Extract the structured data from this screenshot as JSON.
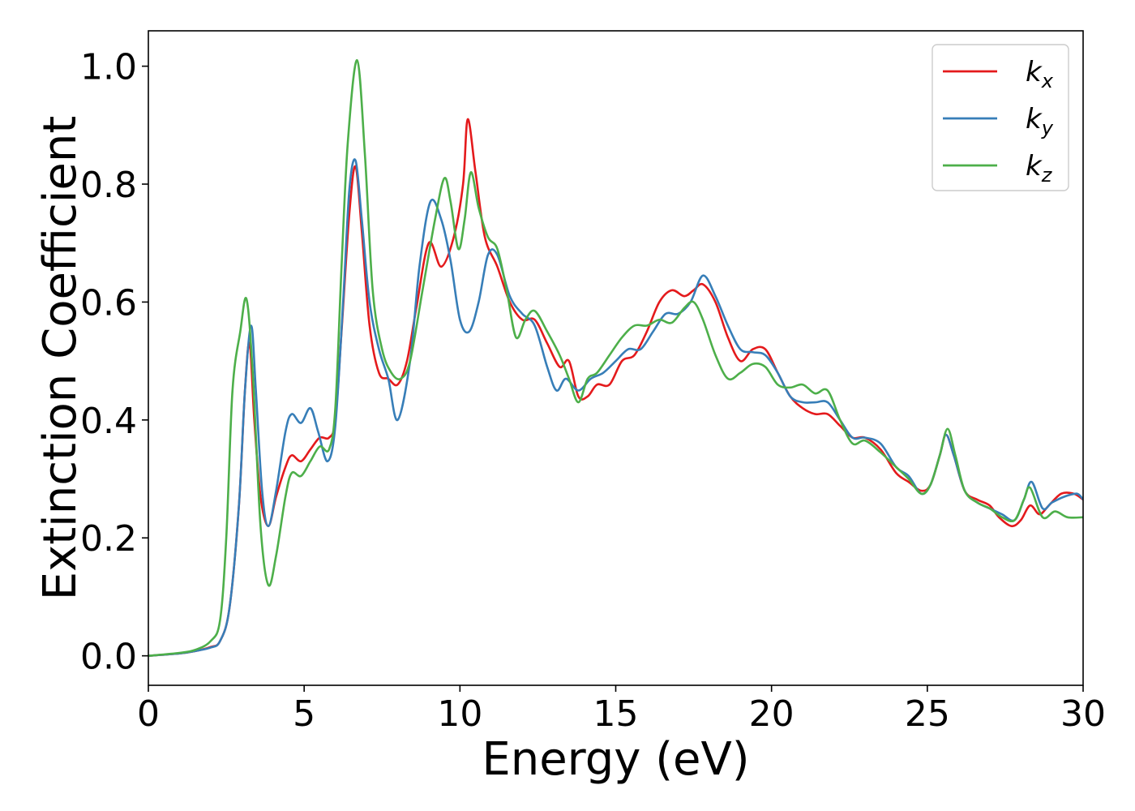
{
  "chart_data": {
    "type": "line",
    "xlabel": "Energy (eV)",
    "ylabel": "Extinction Coefficient",
    "xlim": [
      0,
      30
    ],
    "ylim": [
      -0.05,
      1.06
    ],
    "x_ticks": [
      "0",
      "5",
      "10",
      "15",
      "20",
      "25",
      "30"
    ],
    "y_ticks": [
      "0.0",
      "0.2",
      "0.4",
      "0.6",
      "0.8",
      "1.0"
    ],
    "grid": false,
    "legend_position": "top-right",
    "series": [
      {
        "name": "kx",
        "color": "#e41a1c",
        "points": [
          [
            0,
            0
          ],
          [
            1,
            0.004
          ],
          [
            1.5,
            0.008
          ],
          [
            2,
            0.015
          ],
          [
            2.3,
            0.025
          ],
          [
            2.6,
            0.08
          ],
          [
            2.9,
            0.25
          ],
          [
            3.1,
            0.45
          ],
          [
            3.25,
            0.53
          ],
          [
            3.4,
            0.4
          ],
          [
            3.6,
            0.27
          ],
          [
            3.85,
            0.22
          ],
          [
            4.1,
            0.27
          ],
          [
            4.4,
            0.32
          ],
          [
            4.6,
            0.34
          ],
          [
            4.9,
            0.33
          ],
          [
            5.2,
            0.35
          ],
          [
            5.5,
            0.37
          ],
          [
            5.8,
            0.37
          ],
          [
            6.0,
            0.4
          ],
          [
            6.2,
            0.55
          ],
          [
            6.45,
            0.75
          ],
          [
            6.65,
            0.83
          ],
          [
            6.85,
            0.72
          ],
          [
            7.1,
            0.56
          ],
          [
            7.4,
            0.48
          ],
          [
            7.7,
            0.47
          ],
          [
            8.0,
            0.46
          ],
          [
            8.3,
            0.5
          ],
          [
            8.6,
            0.59
          ],
          [
            9.0,
            0.7
          ],
          [
            9.4,
            0.66
          ],
          [
            9.8,
            0.71
          ],
          [
            10.1,
            0.8
          ],
          [
            10.25,
            0.91
          ],
          [
            10.5,
            0.82
          ],
          [
            10.8,
            0.71
          ],
          [
            11.2,
            0.66
          ],
          [
            11.6,
            0.6
          ],
          [
            12.0,
            0.57
          ],
          [
            12.4,
            0.57
          ],
          [
            12.8,
            0.53
          ],
          [
            13.2,
            0.49
          ],
          [
            13.5,
            0.5
          ],
          [
            13.8,
            0.44
          ],
          [
            14.1,
            0.44
          ],
          [
            14.4,
            0.46
          ],
          [
            14.8,
            0.46
          ],
          [
            15.2,
            0.5
          ],
          [
            15.6,
            0.51
          ],
          [
            16.0,
            0.55
          ],
          [
            16.4,
            0.6
          ],
          [
            16.8,
            0.62
          ],
          [
            17.2,
            0.61
          ],
          [
            17.5,
            0.62
          ],
          [
            17.8,
            0.63
          ],
          [
            18.2,
            0.6
          ],
          [
            18.6,
            0.54
          ],
          [
            19.0,
            0.5
          ],
          [
            19.4,
            0.52
          ],
          [
            19.8,
            0.52
          ],
          [
            20.2,
            0.48
          ],
          [
            20.6,
            0.44
          ],
          [
            21.0,
            0.42
          ],
          [
            21.4,
            0.41
          ],
          [
            21.8,
            0.41
          ],
          [
            22.2,
            0.39
          ],
          [
            22.6,
            0.37
          ],
          [
            23.0,
            0.37
          ],
          [
            23.5,
            0.35
          ],
          [
            24.0,
            0.31
          ],
          [
            24.4,
            0.295
          ],
          [
            24.8,
            0.28
          ],
          [
            25.1,
            0.29
          ],
          [
            25.4,
            0.34
          ],
          [
            25.6,
            0.375
          ],
          [
            25.85,
            0.34
          ],
          [
            26.2,
            0.28
          ],
          [
            26.6,
            0.265
          ],
          [
            27.0,
            0.255
          ],
          [
            27.3,
            0.235
          ],
          [
            27.7,
            0.22
          ],
          [
            28.0,
            0.23
          ],
          [
            28.3,
            0.255
          ],
          [
            28.6,
            0.24
          ],
          [
            28.9,
            0.255
          ],
          [
            29.3,
            0.275
          ],
          [
            29.7,
            0.275
          ],
          [
            30,
            0.265
          ]
        ]
      },
      {
        "name": "ky",
        "color": "#377eb8",
        "points": [
          [
            0,
            0
          ],
          [
            1,
            0.004
          ],
          [
            1.5,
            0.008
          ],
          [
            2,
            0.014
          ],
          [
            2.3,
            0.025
          ],
          [
            2.6,
            0.08
          ],
          [
            2.9,
            0.25
          ],
          [
            3.1,
            0.45
          ],
          [
            3.3,
            0.56
          ],
          [
            3.45,
            0.45
          ],
          [
            3.65,
            0.28
          ],
          [
            3.85,
            0.22
          ],
          [
            4.1,
            0.28
          ],
          [
            4.4,
            0.38
          ],
          [
            4.6,
            0.41
          ],
          [
            4.9,
            0.395
          ],
          [
            5.2,
            0.42
          ],
          [
            5.45,
            0.38
          ],
          [
            5.75,
            0.33
          ],
          [
            6.0,
            0.39
          ],
          [
            6.25,
            0.6
          ],
          [
            6.45,
            0.79
          ],
          [
            6.65,
            0.84
          ],
          [
            6.85,
            0.74
          ],
          [
            7.1,
            0.6
          ],
          [
            7.4,
            0.52
          ],
          [
            7.7,
            0.47
          ],
          [
            8.0,
            0.4
          ],
          [
            8.4,
            0.5
          ],
          [
            8.7,
            0.66
          ],
          [
            9.05,
            0.77
          ],
          [
            9.4,
            0.74
          ],
          [
            9.7,
            0.67
          ],
          [
            10.0,
            0.57
          ],
          [
            10.3,
            0.55
          ],
          [
            10.6,
            0.6
          ],
          [
            10.9,
            0.68
          ],
          [
            11.2,
            0.68
          ],
          [
            11.6,
            0.61
          ],
          [
            12.0,
            0.58
          ],
          [
            12.4,
            0.56
          ],
          [
            12.8,
            0.49
          ],
          [
            13.1,
            0.45
          ],
          [
            13.4,
            0.47
          ],
          [
            13.8,
            0.45
          ],
          [
            14.2,
            0.47
          ],
          [
            14.6,
            0.48
          ],
          [
            15.0,
            0.5
          ],
          [
            15.4,
            0.52
          ],
          [
            15.8,
            0.52
          ],
          [
            16.2,
            0.55
          ],
          [
            16.6,
            0.58
          ],
          [
            17.0,
            0.58
          ],
          [
            17.4,
            0.6
          ],
          [
            17.8,
            0.645
          ],
          [
            18.2,
            0.61
          ],
          [
            18.6,
            0.56
          ],
          [
            19.0,
            0.52
          ],
          [
            19.4,
            0.515
          ],
          [
            19.8,
            0.51
          ],
          [
            20.2,
            0.48
          ],
          [
            20.6,
            0.44
          ],
          [
            21.0,
            0.43
          ],
          [
            21.4,
            0.43
          ],
          [
            21.8,
            0.43
          ],
          [
            22.2,
            0.4
          ],
          [
            22.6,
            0.37
          ],
          [
            23.0,
            0.37
          ],
          [
            23.5,
            0.36
          ],
          [
            24.0,
            0.32
          ],
          [
            24.4,
            0.305
          ],
          [
            24.8,
            0.275
          ],
          [
            25.1,
            0.29
          ],
          [
            25.4,
            0.34
          ],
          [
            25.6,
            0.375
          ],
          [
            25.85,
            0.34
          ],
          [
            26.2,
            0.28
          ],
          [
            26.6,
            0.26
          ],
          [
            27.0,
            0.25
          ],
          [
            27.4,
            0.24
          ],
          [
            27.8,
            0.23
          ],
          [
            28.1,
            0.265
          ],
          [
            28.35,
            0.295
          ],
          [
            28.7,
            0.25
          ],
          [
            29.0,
            0.26
          ],
          [
            29.4,
            0.27
          ],
          [
            29.8,
            0.275
          ],
          [
            30,
            0.265
          ]
        ]
      },
      {
        "name": "kz",
        "color": "#4daf4a",
        "points": [
          [
            0,
            0
          ],
          [
            1,
            0.005
          ],
          [
            1.5,
            0.01
          ],
          [
            2,
            0.025
          ],
          [
            2.3,
            0.06
          ],
          [
            2.5,
            0.2
          ],
          [
            2.7,
            0.45
          ],
          [
            2.95,
            0.55
          ],
          [
            3.15,
            0.605
          ],
          [
            3.35,
            0.48
          ],
          [
            3.6,
            0.22
          ],
          [
            3.85,
            0.12
          ],
          [
            4.1,
            0.17
          ],
          [
            4.4,
            0.27
          ],
          [
            4.6,
            0.31
          ],
          [
            4.9,
            0.305
          ],
          [
            5.2,
            0.33
          ],
          [
            5.5,
            0.355
          ],
          [
            5.8,
            0.35
          ],
          [
            6.0,
            0.42
          ],
          [
            6.2,
            0.66
          ],
          [
            6.4,
            0.87
          ],
          [
            6.7,
            1.01
          ],
          [
            6.95,
            0.85
          ],
          [
            7.2,
            0.62
          ],
          [
            7.5,
            0.52
          ],
          [
            7.8,
            0.48
          ],
          [
            8.1,
            0.47
          ],
          [
            8.4,
            0.5
          ],
          [
            8.8,
            0.62
          ],
          [
            9.2,
            0.74
          ],
          [
            9.5,
            0.81
          ],
          [
            9.7,
            0.77
          ],
          [
            9.95,
            0.69
          ],
          [
            10.15,
            0.74
          ],
          [
            10.35,
            0.82
          ],
          [
            10.6,
            0.76
          ],
          [
            10.9,
            0.71
          ],
          [
            11.2,
            0.69
          ],
          [
            11.5,
            0.62
          ],
          [
            11.8,
            0.54
          ],
          [
            12.1,
            0.57
          ],
          [
            12.4,
            0.585
          ],
          [
            12.8,
            0.55
          ],
          [
            13.2,
            0.51
          ],
          [
            13.5,
            0.47
          ],
          [
            13.8,
            0.43
          ],
          [
            14.1,
            0.47
          ],
          [
            14.4,
            0.48
          ],
          [
            14.8,
            0.51
          ],
          [
            15.2,
            0.54
          ],
          [
            15.6,
            0.56
          ],
          [
            16.0,
            0.56
          ],
          [
            16.4,
            0.57
          ],
          [
            16.8,
            0.565
          ],
          [
            17.2,
            0.59
          ],
          [
            17.5,
            0.6
          ],
          [
            17.8,
            0.57
          ],
          [
            18.2,
            0.51
          ],
          [
            18.6,
            0.47
          ],
          [
            19.0,
            0.48
          ],
          [
            19.4,
            0.495
          ],
          [
            19.8,
            0.49
          ],
          [
            20.2,
            0.46
          ],
          [
            20.6,
            0.455
          ],
          [
            21.0,
            0.46
          ],
          [
            21.4,
            0.445
          ],
          [
            21.8,
            0.45
          ],
          [
            22.2,
            0.4
          ],
          [
            22.6,
            0.36
          ],
          [
            23.0,
            0.365
          ],
          [
            23.5,
            0.345
          ],
          [
            24.0,
            0.32
          ],
          [
            24.4,
            0.3
          ],
          [
            24.8,
            0.275
          ],
          [
            25.1,
            0.29
          ],
          [
            25.4,
            0.34
          ],
          [
            25.65,
            0.385
          ],
          [
            25.9,
            0.34
          ],
          [
            26.2,
            0.28
          ],
          [
            26.6,
            0.26
          ],
          [
            27.0,
            0.25
          ],
          [
            27.4,
            0.235
          ],
          [
            27.8,
            0.23
          ],
          [
            28.1,
            0.265
          ],
          [
            28.3,
            0.285
          ],
          [
            28.7,
            0.235
          ],
          [
            29.1,
            0.245
          ],
          [
            29.5,
            0.235
          ],
          [
            30,
            0.235
          ]
        ]
      }
    ]
  }
}
